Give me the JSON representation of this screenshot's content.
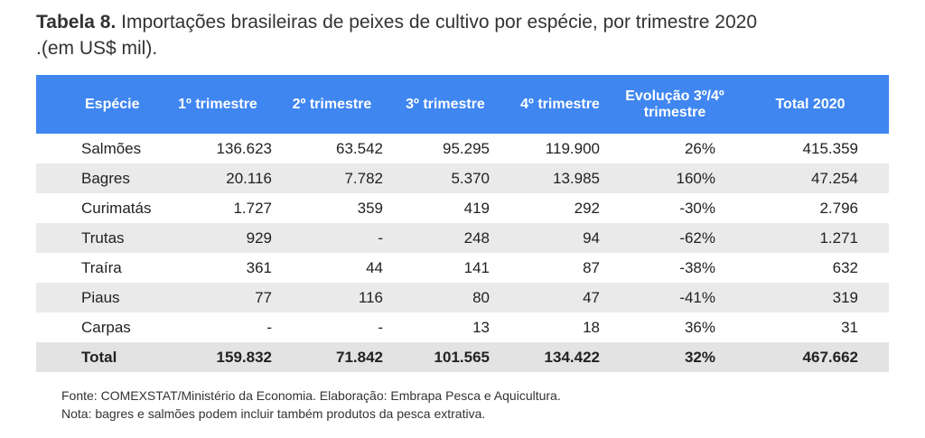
{
  "title": {
    "label": "Tabela 8.",
    "text": " Importações brasileiras de peixes de cultivo por espécie, por trimestre 2020",
    "line2": ".(em US$ mil)."
  },
  "table": {
    "headers": {
      "especie": "Espécie",
      "t1": "1º trimestre",
      "t2": "2º trimestre",
      "t3": "3º trimestre",
      "t4": "4º trimestre",
      "evol": "Evolução 3º/4º trimestre",
      "total": "Total 2020"
    },
    "rows": [
      [
        "Salmões",
        "136.623",
        "63.542",
        "95.295",
        "119.900",
        "26%",
        "415.359"
      ],
      [
        "Bagres",
        "20.116",
        "7.782",
        "5.370",
        "13.985",
        "160%",
        "47.254"
      ],
      [
        "Curimatás",
        "1.727",
        "359",
        "419",
        "292",
        "-30%",
        "2.796"
      ],
      [
        "Trutas",
        "929",
        "-",
        "248",
        "94",
        "-62%",
        "1.271"
      ],
      [
        "Traíra",
        "361",
        "44",
        "141",
        "87",
        "-38%",
        "632"
      ],
      [
        "Piaus",
        "77",
        "116",
        "80",
        "47",
        "-41%",
        "319"
      ],
      [
        "Carpas",
        "-",
        "-",
        "13",
        "18",
        "36%",
        "31"
      ],
      [
        "Total",
        "159.832",
        "71.842",
        "101.565",
        "134.422",
        "32%",
        "467.662"
      ]
    ]
  },
  "footer": {
    "source": "Fonte: COMEXSTAT/Ministério da Economia. Elaboração: Embrapa Pesca e Aquicultura.",
    "note": "Nota: bagres e salmões podem incluir também produtos da pesca extrativa."
  },
  "colors": {
    "header_bg": "#3f86f0",
    "row_shade": "#eaeaea"
  }
}
